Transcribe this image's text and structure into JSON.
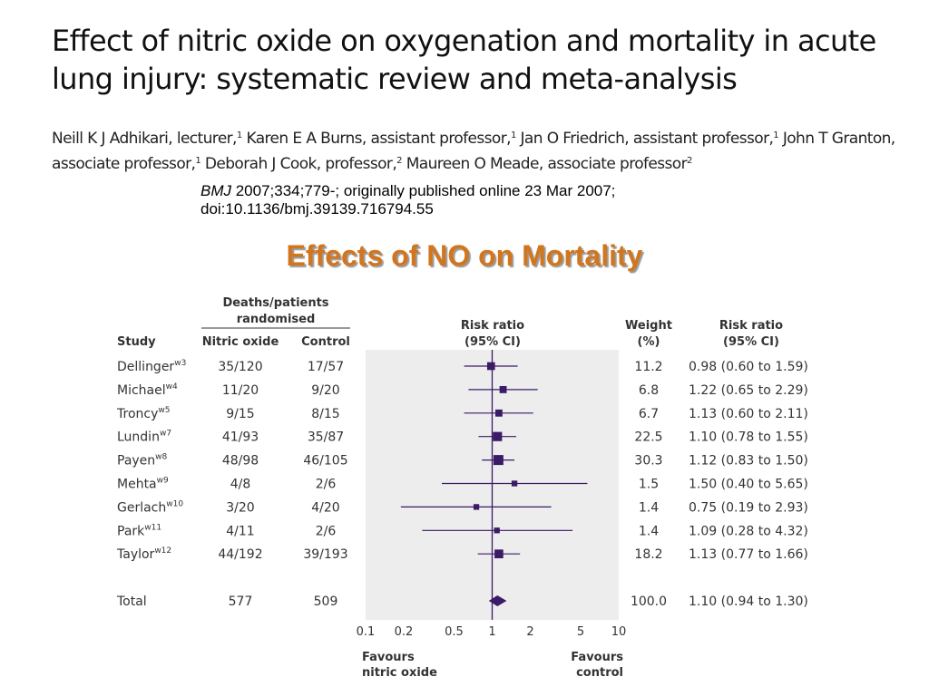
{
  "paper": {
    "title": "Effect of nitric oxide on oxygenation and mortality in acute lung injury: systematic review and meta-analysis",
    "authors": [
      {
        "name": "Neill K J Adhikari, ",
        "role": "lecturer,",
        "aff": "1"
      },
      {
        "name": "Karen E A Burns, ",
        "role": "assistant professor,",
        "aff": "1"
      },
      {
        "name": "Jan O Friedrich, ",
        "role": "assistant professor,",
        "aff": "1"
      },
      {
        "name": "John T Granton, ",
        "role": "associate professor,",
        "aff": "1"
      },
      {
        "name": "Deborah J Cook, ",
        "role": "professor,",
        "aff": "2"
      },
      {
        "name": "Maureen O Meade, ",
        "role": "associate professor",
        "aff": "2"
      }
    ],
    "citation_journal": "BMJ",
    "citation_rest": " 2007;334;779-; originally published online 23 Mar 2007;",
    "citation_doi": "doi:10.1136/bmj.39139.716794.55"
  },
  "slide_title": "Effects of NO on Mortality",
  "chart_data": {
    "type": "forest",
    "headers": {
      "study": "Study",
      "group": [
        "Deaths/patients",
        "randomised"
      ],
      "nitric_oxide": "Nitric oxide",
      "control": "Control",
      "rr_plot": [
        "Risk ratio",
        "(95% CI)"
      ],
      "weight": [
        "Weight",
        "(%)"
      ],
      "rr_text": [
        "Risk ratio",
        "(95% CI)"
      ]
    },
    "x_axis": {
      "scale": "log",
      "ticks": [
        0.1,
        0.2,
        0.5,
        1,
        2,
        5,
        10
      ],
      "tick_labels": [
        "0.1",
        "0.2",
        "0.5",
        "1",
        "2",
        "5",
        "10"
      ],
      "range": [
        0.1,
        10
      ],
      "favours_left": [
        "Favours",
        "nitric oxide"
      ],
      "favours_right": [
        "Favours",
        "control"
      ]
    },
    "studies": [
      {
        "study": "Dellinger",
        "ref": "w3",
        "no": "35/120",
        "ctrl": "17/57",
        "rr": 0.98,
        "lo": 0.6,
        "hi": 1.59,
        "weight": "11.2",
        "ci_text": "0.98 (0.60 to 1.59)"
      },
      {
        "study": "Michael",
        "ref": "w4",
        "no": "11/20",
        "ctrl": "9/20",
        "rr": 1.22,
        "lo": 0.65,
        "hi": 2.29,
        "weight": "6.8",
        "ci_text": "1.22 (0.65 to 2.29)"
      },
      {
        "study": "Troncy",
        "ref": "w5",
        "no": "9/15",
        "ctrl": "8/15",
        "rr": 1.13,
        "lo": 0.6,
        "hi": 2.11,
        "weight": "6.7",
        "ci_text": "1.13 (0.60 to 2.11)"
      },
      {
        "study": "Lundin",
        "ref": "w7",
        "no": "41/93",
        "ctrl": "35/87",
        "rr": 1.1,
        "lo": 0.78,
        "hi": 1.55,
        "weight": "22.5",
        "ci_text": "1.10 (0.78 to 1.55)"
      },
      {
        "study": "Payen",
        "ref": "w8",
        "no": "48/98",
        "ctrl": "46/105",
        "rr": 1.12,
        "lo": 0.83,
        "hi": 1.5,
        "weight": "30.3",
        "ci_text": "1.12 (0.83 to 1.50)"
      },
      {
        "study": "Mehta",
        "ref": "w9",
        "no": "4/8",
        "ctrl": "2/6",
        "rr": 1.5,
        "lo": 0.4,
        "hi": 5.65,
        "weight": "1.5",
        "ci_text": "1.50 (0.40 to 5.65)"
      },
      {
        "study": "Gerlach",
        "ref": "w10",
        "no": "3/20",
        "ctrl": "4/20",
        "rr": 0.75,
        "lo": 0.19,
        "hi": 2.93,
        "weight": "1.4",
        "ci_text": "0.75 (0.19 to 2.93)"
      },
      {
        "study": "Park",
        "ref": "w11",
        "no": "4/11",
        "ctrl": "2/6",
        "rr": 1.09,
        "lo": 0.28,
        "hi": 4.32,
        "weight": "1.4",
        "ci_text": "1.09 (0.28 to 4.32)"
      },
      {
        "study": "Taylor",
        "ref": "w12",
        "no": "44/192",
        "ctrl": "39/193",
        "rr": 1.13,
        "lo": 0.77,
        "hi": 1.66,
        "weight": "18.2",
        "ci_text": "1.13 (0.77 to 1.66)"
      }
    ],
    "total": {
      "study": "Total",
      "no": "577",
      "ctrl": "509",
      "rr": 1.1,
      "lo": 0.94,
      "hi": 1.3,
      "weight": "100.0",
      "ci_text": "1.10 (0.94 to 1.30)"
    },
    "colors": {
      "marker": "#3b1a66",
      "panel": "#ededed",
      "text": "#333333"
    }
  }
}
